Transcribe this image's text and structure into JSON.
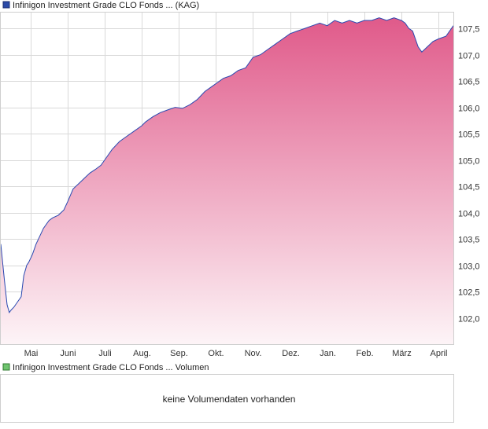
{
  "legend": {
    "price_label": "Infinigon Investment Grade CLO Fonds ... (KAG)",
    "volume_label": "Infinigon Investment Grade CLO Fonds ... Volumen"
  },
  "volume_panel": {
    "message": "keine Volumendaten vorhanden"
  },
  "colors": {
    "line": "#2948b0",
    "fill_top": "#e05a8a",
    "fill_bottom": "#fdf4f7",
    "price_legend": "#2b4aa8",
    "volume_legend": "#6fc46f"
  },
  "chart_data": {
    "type": "area",
    "title": "",
    "xlabel": "",
    "ylabel": "",
    "x_tick_labels": [
      "Mai",
      "Juni",
      "Juli",
      "Aug.",
      "Sep.",
      "Okt.",
      "Nov.",
      "Dez.",
      "Jan.",
      "Feb.",
      "März",
      "April"
    ],
    "y_ticks": [
      102.0,
      102.5,
      103.0,
      103.5,
      104.0,
      104.5,
      105.0,
      105.5,
      106.0,
      106.5,
      107.0,
      107.5
    ],
    "y_tick_labels": [
      "102,0",
      "102,5",
      "103,0",
      "103,5",
      "104,0",
      "104,5",
      "105,0",
      "105,5",
      "106,0",
      "106,5",
      "107,0",
      "107,5"
    ],
    "ylim": [
      101.5,
      107.8
    ],
    "x_range_months": [
      3.2,
      15.4
    ],
    "grid": true,
    "series": [
      {
        "x": [
          3.2,
          3.3,
          3.37,
          3.43,
          3.48,
          3.55,
          3.65,
          3.75,
          3.82,
          3.9,
          3.95,
          4.05,
          4.15,
          4.25,
          4.35,
          4.5,
          4.6,
          4.75,
          4.9,
          5.0,
          5.15,
          5.3,
          5.45,
          5.6,
          5.75,
          5.9,
          6.0,
          6.2,
          6.4,
          6.6,
          6.8,
          7.0,
          7.1,
          7.3,
          7.5,
          7.7,
          7.9,
          8.1,
          8.3,
          8.5,
          8.7,
          8.9,
          9.0,
          9.2,
          9.4,
          9.6,
          9.8,
          10.0,
          10.2,
          10.4,
          10.6,
          10.8,
          11.0,
          11.2,
          11.4,
          11.6,
          11.8,
          12.0,
          12.2,
          12.4,
          12.6,
          12.8,
          13.0,
          13.2,
          13.4,
          13.6,
          13.8,
          14.0,
          14.1,
          14.2,
          14.3,
          14.45,
          14.55,
          14.7,
          14.85,
          15.0,
          15.2,
          15.3,
          15.4
        ],
        "values": [
          103.4,
          102.7,
          102.25,
          102.1,
          102.15,
          102.2,
          102.3,
          102.4,
          102.8,
          103.0,
          103.05,
          103.2,
          103.4,
          103.55,
          103.7,
          103.85,
          103.9,
          103.95,
          104.05,
          104.2,
          104.45,
          104.55,
          104.65,
          104.75,
          104.82,
          104.9,
          105.0,
          105.2,
          105.35,
          105.45,
          105.55,
          105.65,
          105.72,
          105.82,
          105.9,
          105.95,
          106.0,
          105.98,
          106.05,
          106.15,
          106.3,
          106.4,
          106.45,
          106.55,
          106.6,
          106.7,
          106.75,
          106.95,
          107.0,
          107.1,
          107.2,
          107.3,
          107.4,
          107.45,
          107.5,
          107.55,
          107.6,
          107.55,
          107.65,
          107.6,
          107.65,
          107.6,
          107.65,
          107.65,
          107.7,
          107.65,
          107.7,
          107.65,
          107.6,
          107.5,
          107.45,
          107.15,
          107.05,
          107.15,
          107.25,
          107.3,
          107.35,
          107.45,
          107.55
        ]
      }
    ]
  }
}
